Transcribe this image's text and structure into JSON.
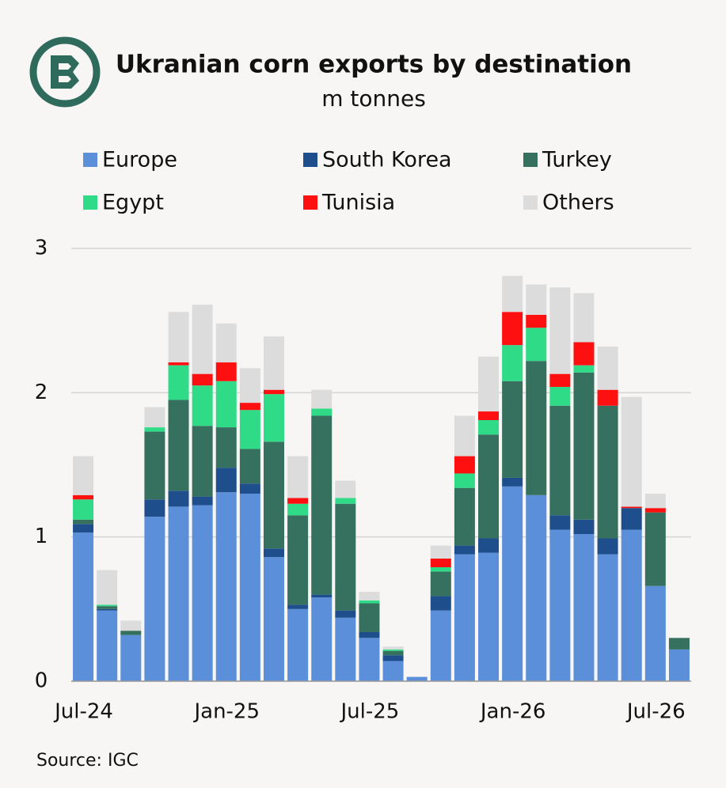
{
  "chart_data": {
    "type": "stacked_bar",
    "title": "Ukranian corn exports by destination",
    "subtitle": "m tonnes",
    "source": "Source: IGC",
    "categories": [
      "Jul-24",
      null,
      null,
      null,
      null,
      null,
      "Jan-25",
      null,
      null,
      null,
      null,
      null,
      "Jul-25",
      null,
      null,
      null,
      null,
      null,
      "Jan-26",
      null,
      null,
      null,
      null,
      null,
      "Jul-26",
      null
    ],
    "series": [
      {
        "name": "Europe",
        "color": "#5b8fd9",
        "values": [
          1.03,
          0.49,
          0.32,
          1.14,
          1.21,
          1.22,
          1.31,
          1.3,
          0.86,
          0.5,
          0.58,
          0.44,
          0.3,
          0.14,
          0.03,
          0.49,
          0.88,
          0.89,
          1.35,
          1.29,
          1.05,
          1.02,
          0.88,
          1.05,
          0.66,
          0.22
        ]
      },
      {
        "name": "South Korea",
        "color": "#1f4e8c",
        "values": [
          0.06,
          0.01,
          0,
          0.12,
          0.11,
          0.06,
          0.17,
          0.07,
          0.06,
          0.03,
          0.02,
          0.05,
          0.04,
          0.04,
          0,
          0.1,
          0.06,
          0.1,
          0.06,
          0,
          0.1,
          0.1,
          0.11,
          0.15,
          0,
          0
        ]
      },
      {
        "name": "Turkey",
        "color": "#36705f",
        "values": [
          0.03,
          0.02,
          0.03,
          0.47,
          0.63,
          0.49,
          0.28,
          0.24,
          0.74,
          0.62,
          1.24,
          0.74,
          0.2,
          0.03,
          0,
          0.17,
          0.4,
          0.72,
          0.67,
          0.93,
          0.76,
          1.02,
          0.92,
          0,
          0.51,
          0.08
        ]
      },
      {
        "name": "Egypt",
        "color": "#2fdb87",
        "values": [
          0.14,
          0.01,
          0,
          0.03,
          0.24,
          0.28,
          0.32,
          0.27,
          0.33,
          0.08,
          0.05,
          0.04,
          0.02,
          0.01,
          0,
          0.03,
          0.1,
          0.1,
          0.25,
          0.23,
          0.13,
          0.05,
          0,
          0,
          0,
          0
        ]
      },
      {
        "name": "Tunisia",
        "color": "#ff1010",
        "values": [
          0.03,
          0,
          0,
          0,
          0.02,
          0.08,
          0.13,
          0.05,
          0.03,
          0.04,
          0,
          0,
          0,
          0,
          0,
          0.06,
          0.12,
          0.06,
          0.23,
          0.09,
          0.09,
          0.16,
          0.11,
          0.01,
          0.03,
          0
        ]
      },
      {
        "name": "Others",
        "color": "#dcdcdc",
        "values": [
          0.27,
          0.24,
          0.07,
          0.14,
          0.35,
          0.48,
          0.27,
          0.24,
          0.37,
          0.29,
          0.13,
          0.12,
          0.06,
          0.02,
          0,
          0.09,
          0.28,
          0.38,
          0.25,
          0.21,
          0.6,
          0.34,
          0.3,
          0.76,
          0.1,
          0
        ]
      }
    ],
    "ylim": [
      0,
      3
    ],
    "yticks": [
      0,
      1,
      2,
      3
    ],
    "grid": true
  }
}
